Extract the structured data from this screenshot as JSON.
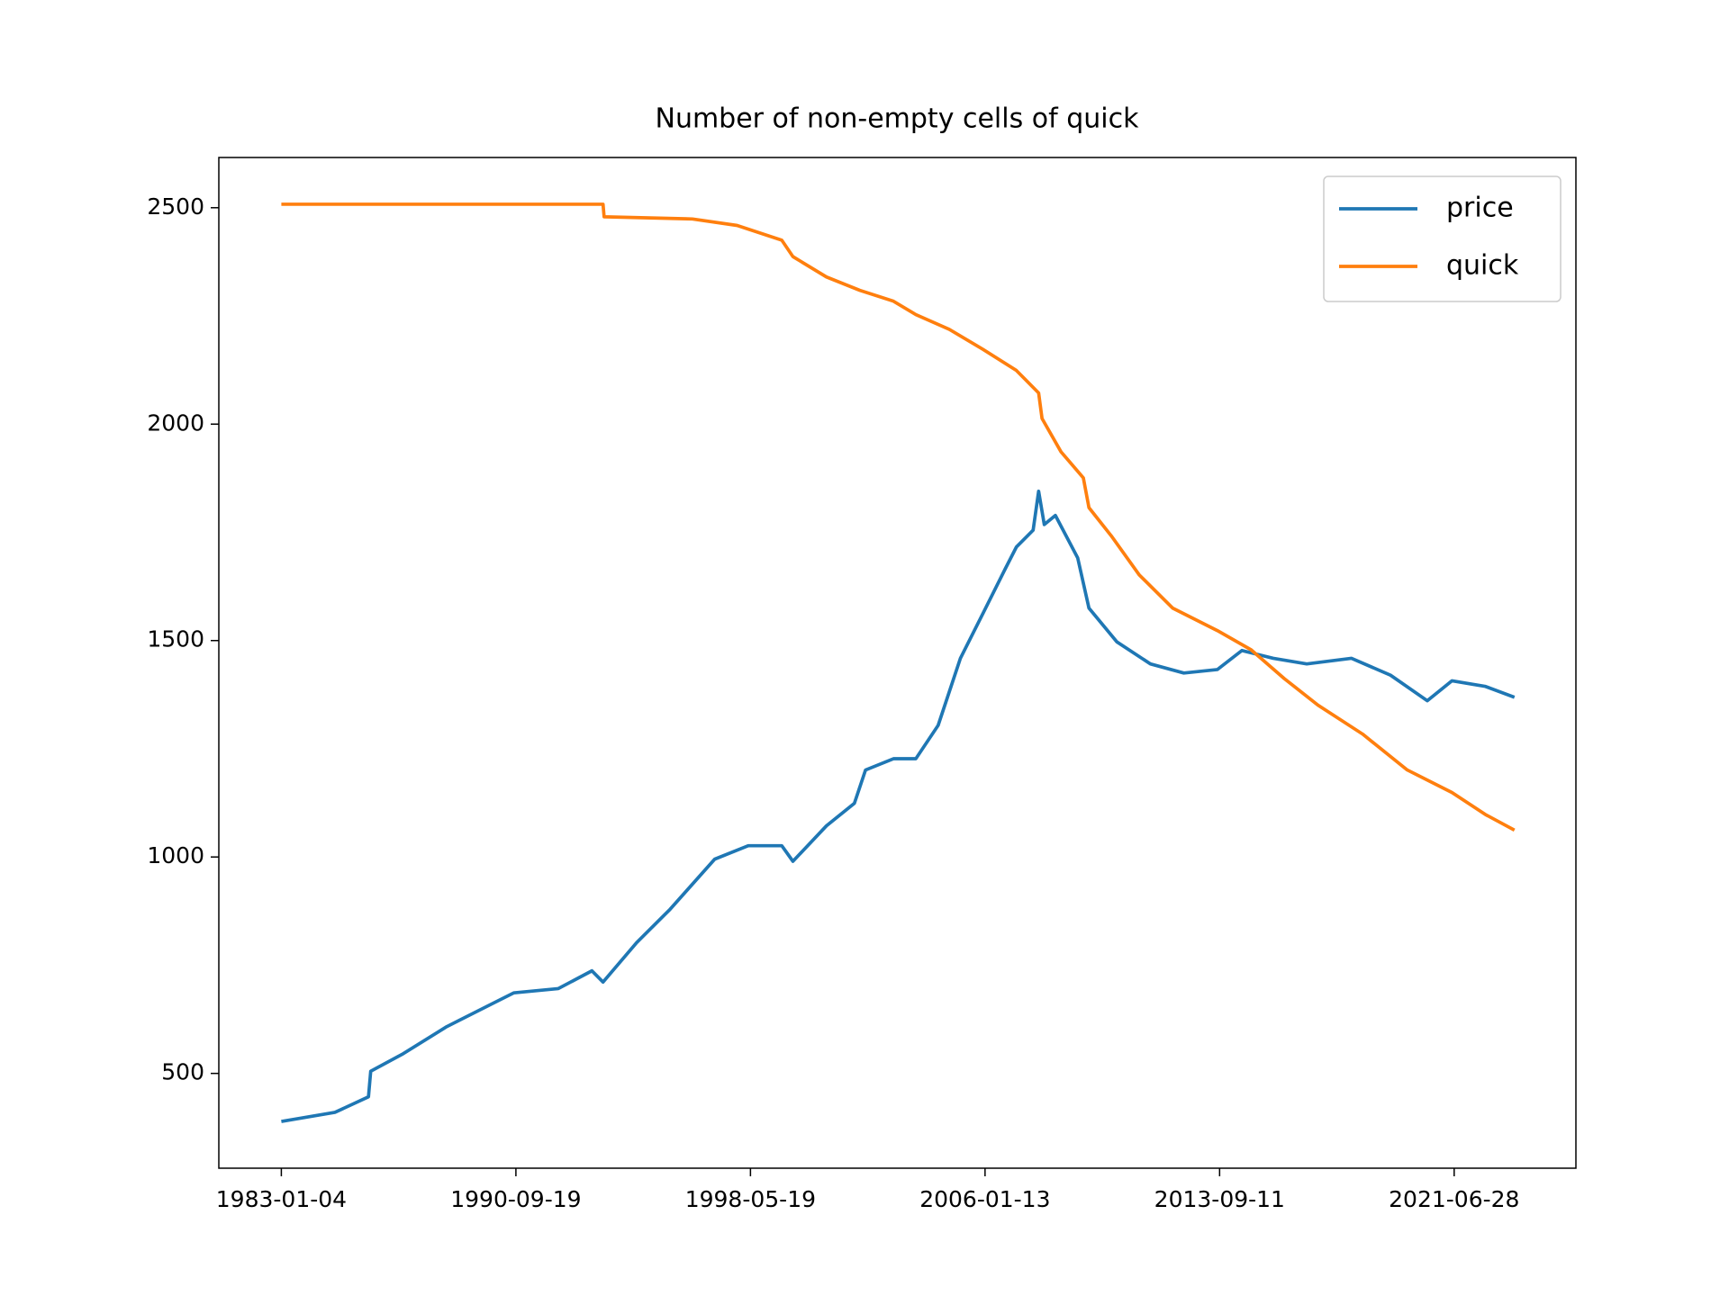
{
  "chart_data": {
    "type": "line",
    "title": "Number of non-empty cells of quick",
    "xlim": [
      -533,
      11038
    ],
    "ylim": [
      281,
      2616
    ],
    "xticks": [
      {
        "value": 0,
        "label": "1983-01-04"
      },
      {
        "value": 2000,
        "label": "1990-09-19"
      },
      {
        "value": 4000,
        "label": "1998-05-19"
      },
      {
        "value": 6000,
        "label": "2006-01-13"
      },
      {
        "value": 8000,
        "label": "2013-09-11"
      },
      {
        "value": 10000,
        "label": "2021-06-28"
      }
    ],
    "yticks": [
      500,
      1000,
      1500,
      2000,
      2500
    ],
    "legend": "upper right",
    "series": [
      {
        "name": "price",
        "color": "#1f77b4",
        "x": [
          0,
          457,
          743,
          762,
          1029,
          1410,
          1790,
          1981,
          2362,
          2648,
          2743,
          3029,
          3314,
          3695,
          3981,
          4267,
          4362,
          4648,
          4886,
          4981,
          5219,
          5410,
          5600,
          5790,
          5981,
          6171,
          6267,
          6410,
          6457,
          6505,
          6600,
          6790,
          6886,
          7124,
          7410,
          7695,
          7981,
          8190,
          8457,
          8743,
          9124,
          9457,
          9771,
          9981,
          10267,
          10514
        ],
        "values": [
          389,
          410,
          446,
          505,
          544,
          608,
          660,
          686,
          696,
          737,
          711,
          802,
          879,
          995,
          1026,
          1026,
          990,
          1072,
          1124,
          1201,
          1227,
          1227,
          1304,
          1459,
          1562,
          1665,
          1716,
          1755,
          1845,
          1768,
          1789,
          1691,
          1575,
          1497,
          1446,
          1425,
          1433,
          1477,
          1459,
          1446,
          1459,
          1420,
          1361,
          1407,
          1394,
          1369
        ]
      },
      {
        "name": "quick",
        "color": "#ff7f0e",
        "x": [
          0,
          2743,
          2752,
          3505,
          3886,
          4267,
          4362,
          4648,
          4933,
          5219,
          5410,
          5695,
          5981,
          6267,
          6457,
          6486,
          6648,
          6838,
          6886,
          7076,
          7314,
          7600,
          7981,
          8267,
          8552,
          8838,
          9219,
          9600,
          9981,
          10267,
          10514
        ],
        "values": [
          2508,
          2508,
          2479,
          2474,
          2459,
          2425,
          2387,
          2340,
          2309,
          2284,
          2253,
          2219,
          2173,
          2124,
          2072,
          2013,
          1936,
          1876,
          1807,
          1742,
          1652,
          1575,
          1523,
          1479,
          1412,
          1351,
          1284,
          1201,
          1149,
          1098,
          1062
        ]
      }
    ]
  }
}
